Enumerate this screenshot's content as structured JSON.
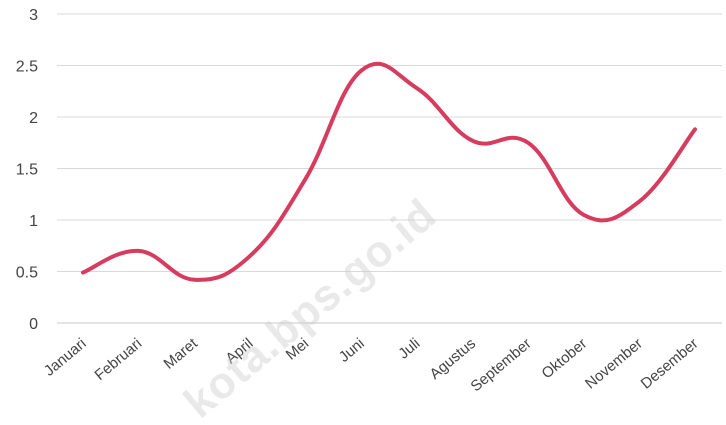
{
  "chart_data": {
    "type": "line",
    "categories": [
      "Januari",
      "Februari",
      "Maret",
      "April",
      "Mei",
      "Juni",
      "Juli",
      "Agustus",
      "September",
      "Oktober",
      "November",
      "Desember"
    ],
    "series": [
      {
        "values": [
          0.49,
          0.7,
          0.42,
          0.65,
          1.4,
          2.45,
          2.28,
          1.77,
          1.75,
          1.05,
          1.18,
          1.88
        ],
        "color": "#d63c5e"
      }
    ],
    "yticks": [
      "0",
      "0.5",
      "1",
      "1.5",
      "2",
      "2.5",
      "3"
    ],
    "ylim": [
      0,
      3
    ],
    "grid": true,
    "smooth": true,
    "legend": "none"
  },
  "watermark": "kota.bps.go.id"
}
